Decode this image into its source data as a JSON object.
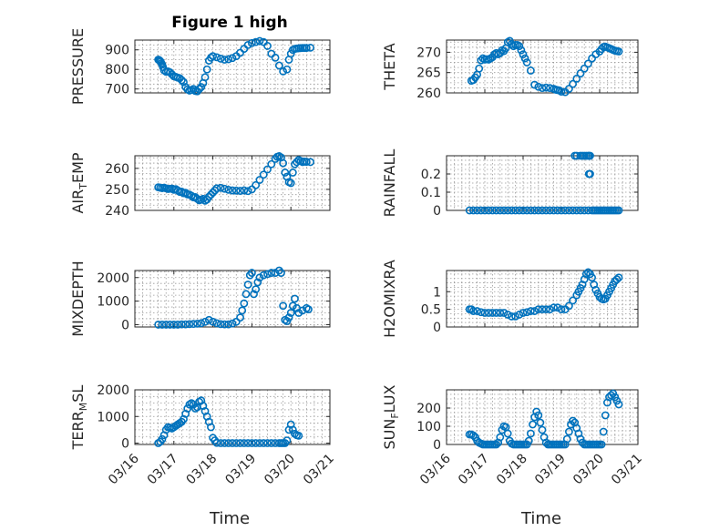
{
  "title": "Figure 1 high",
  "xlabel": "Time",
  "x_ticks": [
    "03/16",
    "03/17",
    "03/18",
    "03/19",
    "03/20",
    "03/21"
  ],
  "marker_color": "#0072BD",
  "chart_data": [
    {
      "type": "scatter",
      "ylabel": "PRESSURE",
      "xlim": [
        0,
        5
      ],
      "ylim": [
        680,
        950
      ],
      "yticks": [
        700,
        800,
        900
      ],
      "grid": true,
      "x": [
        0.6,
        0.62,
        0.64,
        0.66,
        0.68,
        0.7,
        0.72,
        0.75,
        0.8,
        0.85,
        0.9,
        0.95,
        1,
        1.05,
        1.1,
        1.15,
        1.2,
        1.25,
        1.3,
        1.35,
        1.4,
        1.45,
        1.5,
        1.55,
        1.6,
        1.65,
        1.7,
        1.75,
        1.8,
        1.85,
        1.9,
        1.95,
        2,
        2.1,
        2.2,
        2.3,
        2.4,
        2.5,
        2.6,
        2.7,
        2.8,
        2.9,
        3,
        3.1,
        3.2,
        3.3,
        3.4,
        3.5,
        3.6,
        3.7,
        3.8,
        3.9,
        3.95,
        4,
        4.05,
        4.1,
        4.15,
        4.2,
        4.25,
        4.3,
        4.35,
        4.4,
        4.5
      ],
      "y": [
        850,
        848,
        845,
        840,
        832,
        825,
        812,
        795,
        788,
        790,
        785,
        775,
        765,
        762,
        758,
        755,
        745,
        735,
        710,
        698,
        692,
        695,
        700,
        690,
        688,
        700,
        710,
        730,
        760,
        800,
        845,
        860,
        868,
        862,
        855,
        850,
        852,
        858,
        868,
        885,
        905,
        925,
        935,
        940,
        945,
        940,
        920,
        880,
        860,
        820,
        790,
        800,
        850,
        880,
        900,
        905,
        907,
        908,
        909,
        910,
        910,
        910,
        911
      ]
    },
    {
      "type": "scatter",
      "ylabel": "THETA",
      "xlim": [
        0,
        5
      ],
      "ylim": [
        260,
        273
      ],
      "yticks": [
        260,
        265,
        270
      ],
      "grid": true,
      "x": [
        0.65,
        0.7,
        0.75,
        0.8,
        0.85,
        0.9,
        0.95,
        1,
        1.05,
        1.1,
        1.15,
        1.2,
        1.25,
        1.3,
        1.35,
        1.4,
        1.45,
        1.5,
        1.55,
        1.6,
        1.65,
        1.7,
        1.75,
        1.8,
        1.85,
        1.9,
        1.95,
        2,
        2.05,
        2.1,
        2.2,
        2.3,
        2.4,
        2.5,
        2.6,
        2.7,
        2.8,
        2.85,
        2.9,
        2.95,
        3,
        3.1,
        3.2,
        3.3,
        3.4,
        3.5,
        3.6,
        3.7,
        3.8,
        3.9,
        4,
        4.05,
        4.1,
        4.15,
        4.2,
        4.25,
        4.3,
        4.35,
        4.4,
        4.45,
        4.5
      ],
      "y": [
        263,
        263.2,
        263.8,
        264.5,
        266,
        268,
        268.5,
        268.2,
        268.3,
        268.2,
        268.5,
        268.8,
        269.5,
        269.8,
        269.5,
        269.8,
        270.5,
        270.3,
        271,
        272.5,
        272.8,
        272,
        271.5,
        271.8,
        271.8,
        271.5,
        270.5,
        269.5,
        268.5,
        267.5,
        265.5,
        262,
        261.5,
        261.2,
        261.3,
        261.2,
        261,
        260.8,
        260.7,
        260.6,
        260.3,
        260.2,
        261,
        262.2,
        263.5,
        264.8,
        266,
        267.2,
        268.5,
        269.5,
        270.2,
        270.8,
        271.3,
        271.4,
        271.2,
        271,
        270.8,
        270.6,
        270.4,
        270.3,
        270.2
      ]
    },
    {
      "type": "scatter",
      "ylabel": "AIR_TEMP",
      "xlim": [
        0,
        5
      ],
      "ylim": [
        240,
        266
      ],
      "yticks": [
        240,
        250,
        260
      ],
      "grid": true,
      "x": [
        0.6,
        0.65,
        0.7,
        0.75,
        0.8,
        0.85,
        0.9,
        0.95,
        1,
        1.05,
        1.1,
        1.15,
        1.2,
        1.25,
        1.3,
        1.35,
        1.4,
        1.45,
        1.5,
        1.55,
        1.6,
        1.65,
        1.7,
        1.75,
        1.8,
        1.85,
        1.9,
        1.95,
        2,
        2.05,
        2.1,
        2.2,
        2.3,
        2.4,
        2.5,
        2.6,
        2.7,
        2.8,
        2.9,
        3,
        3.1,
        3.2,
        3.3,
        3.4,
        3.5,
        3.6,
        3.65,
        3.7,
        3.75,
        3.8,
        3.85,
        3.9,
        3.95,
        4,
        4.05,
        4.1,
        4.15,
        4.2,
        4.25,
        4.3,
        4.35,
        4.4,
        4.5
      ],
      "y": [
        251,
        250.8,
        250.6,
        250.8,
        250.5,
        250.2,
        250.3,
        250.4,
        249.8,
        250.1,
        249.5,
        248.8,
        248.9,
        248.2,
        248.4,
        247.6,
        247.5,
        247,
        246.2,
        246.3,
        245.5,
        244.8,
        245.1,
        245.5,
        244.6,
        245.2,
        246.5,
        247.5,
        248.5,
        249.5,
        250.5,
        250.7,
        250.3,
        249.8,
        249.5,
        249.4,
        249.3,
        249.5,
        249.2,
        250,
        252,
        254.5,
        257,
        259.5,
        262,
        264.5,
        265.5,
        265.8,
        265.2,
        262.5,
        258,
        256,
        253.5,
        253,
        258,
        262,
        263,
        264,
        263.5,
        263,
        263.2,
        263.1,
        263
      ]
    },
    {
      "type": "scatter",
      "ylabel": "RAINFALL",
      "xlim": [
        0,
        5
      ],
      "ylim": [
        0,
        0.3
      ],
      "yticks": [
        0,
        0.1,
        0.2
      ],
      "grid": true,
      "x": [
        0.6,
        0.7,
        0.8,
        0.9,
        1,
        1.1,
        1.2,
        1.3,
        1.4,
        1.5,
        1.6,
        1.7,
        1.8,
        1.9,
        2,
        2.1,
        2.2,
        2.3,
        2.4,
        2.5,
        2.6,
        2.7,
        2.8,
        2.9,
        3,
        3.1,
        3.2,
        3.3,
        3.4,
        3.5,
        3.6,
        3.7,
        3.8,
        3.85,
        3.9,
        3.95,
        4,
        4.05,
        4.1,
        4.15,
        4.2,
        4.25,
        4.3,
        4.35,
        4.4,
        4.45,
        4.5,
        3.35,
        3.4,
        3.5,
        3.55,
        3.6,
        3.65,
        3.7,
        3.72,
        3.75,
        3.72,
        3.75
      ],
      "y": [
        0,
        0,
        0,
        0,
        0,
        0,
        0,
        0,
        0,
        0,
        0,
        0,
        0,
        0,
        0,
        0,
        0,
        0,
        0,
        0,
        0,
        0,
        0,
        0,
        0,
        0,
        0,
        0,
        0,
        0,
        0,
        0,
        0,
        0,
        0,
        0,
        0,
        0,
        0,
        0,
        0,
        0,
        0,
        0,
        0,
        0,
        0,
        0.3,
        0.3,
        0.3,
        0.3,
        0.3,
        0.3,
        0.3,
        0.3,
        0.3,
        0.2,
        0.2
      ]
    },
    {
      "type": "scatter",
      "ylabel": "MIXDEPTH",
      "xlim": [
        0,
        5
      ],
      "ylim": [
        -100,
        2300
      ],
      "yticks": [
        0,
        1000,
        2000
      ],
      "grid": true,
      "x": [
        0.6,
        0.7,
        0.8,
        0.9,
        1,
        1.1,
        1.2,
        1.3,
        1.4,
        1.5,
        1.6,
        1.7,
        1.8,
        1.9,
        2,
        2.1,
        2.2,
        2.3,
        2.4,
        2.5,
        2.6,
        2.7,
        2.75,
        2.8,
        2.85,
        2.9,
        2.95,
        3,
        3.05,
        3.1,
        3.15,
        3.2,
        3.3,
        3.4,
        3.5,
        3.6,
        3.7,
        3.75,
        3.8,
        3.85,
        3.9,
        3.95,
        4,
        4.05,
        4.1,
        4.15,
        4.2,
        4.3,
        4.4,
        4.45
      ],
      "y": [
        0,
        0,
        0,
        0,
        0,
        0,
        10,
        10,
        20,
        30,
        40,
        60,
        120,
        200,
        120,
        60,
        20,
        10,
        10,
        50,
        120,
        300,
        600,
        900,
        1300,
        1700,
        2100,
        2200,
        1300,
        1500,
        1800,
        2000,
        2100,
        2150,
        2200,
        2200,
        2300,
        2200,
        800,
        200,
        150,
        300,
        500,
        800,
        1100,
        700,
        500,
        600,
        700,
        650
      ]
    },
    {
      "type": "scatter",
      "ylabel": "H2OMIXRA",
      "xlim": [
        0,
        5
      ],
      "ylim": [
        0,
        1.6
      ],
      "yticks": [
        0,
        0.5,
        1
      ],
      "grid": true,
      "x": [
        0.6,
        0.65,
        0.7,
        0.8,
        0.9,
        1,
        1.1,
        1.2,
        1.3,
        1.4,
        1.5,
        1.6,
        1.7,
        1.8,
        1.9,
        2,
        2.1,
        2.2,
        2.3,
        2.4,
        2.5,
        2.6,
        2.7,
        2.8,
        2.9,
        3,
        3.1,
        3.2,
        3.3,
        3.4,
        3.45,
        3.5,
        3.55,
        3.6,
        3.65,
        3.7,
        3.75,
        3.8,
        3.85,
        3.9,
        3.95,
        4,
        4.05,
        4.1,
        4.15,
        4.2,
        4.25,
        4.3,
        4.35,
        4.4,
        4.45,
        4.5
      ],
      "y": [
        0.5,
        0.5,
        0.45,
        0.45,
        0.42,
        0.4,
        0.4,
        0.4,
        0.4,
        0.4,
        0.4,
        0.35,
        0.3,
        0.3,
        0.35,
        0.4,
        0.42,
        0.45,
        0.45,
        0.5,
        0.5,
        0.5,
        0.5,
        0.55,
        0.55,
        0.5,
        0.5,
        0.6,
        0.75,
        0.9,
        1,
        1.1,
        1.2,
        1.35,
        1.5,
        1.55,
        1.5,
        1.4,
        1.2,
        1.05,
        0.95,
        0.85,
        0.8,
        0.78,
        0.8,
        0.9,
        1,
        1.1,
        1.2,
        1.3,
        1.35,
        1.4
      ]
    },
    {
      "type": "scatter",
      "ylabel": "TERR_MSL",
      "xlim": [
        0,
        5
      ],
      "ylim": [
        -50,
        2000
      ],
      "yticks": [
        0,
        1000,
        2000
      ],
      "grid": true,
      "x": [
        0.6,
        0.65,
        0.7,
        0.75,
        0.8,
        0.85,
        0.9,
        0.95,
        1,
        1.05,
        1.1,
        1.15,
        1.2,
        1.25,
        1.3,
        1.35,
        1.4,
        1.45,
        1.5,
        1.55,
        1.6,
        1.65,
        1.7,
        1.75,
        1.8,
        1.85,
        1.9,
        1.95,
        2,
        2.05,
        2.1,
        2.2,
        2.3,
        2.4,
        2.5,
        2.6,
        2.7,
        2.8,
        2.9,
        3,
        3.1,
        3.2,
        3.3,
        3.4,
        3.5,
        3.6,
        3.7,
        3.75,
        3.8,
        3.85,
        3.9,
        3.95,
        4,
        4.05,
        4.1,
        4.15,
        4.2
      ],
      "y": [
        0,
        50,
        150,
        300,
        500,
        600,
        580,
        550,
        600,
        650,
        700,
        750,
        800,
        900,
        1100,
        1300,
        1450,
        1500,
        1450,
        1300,
        1350,
        1550,
        1600,
        1400,
        1200,
        1000,
        800,
        600,
        200,
        100,
        10,
        0,
        0,
        0,
        0,
        0,
        0,
        0,
        0,
        0,
        0,
        0,
        0,
        0,
        0,
        0,
        0,
        0,
        0,
        0,
        100,
        500,
        700,
        500,
        350,
        300,
        280
      ]
    },
    {
      "type": "scatter",
      "ylabel": "SUN_FLUX",
      "xlim": [
        0,
        5
      ],
      "ylim": [
        0,
        300
      ],
      "yticks": [
        0,
        100,
        200
      ],
      "grid": true,
      "x": [
        0.6,
        0.65,
        0.7,
        0.75,
        0.8,
        0.85,
        0.9,
        0.95,
        1,
        1.05,
        1.1,
        1.15,
        1.2,
        1.25,
        1.3,
        1.35,
        1.4,
        1.45,
        1.5,
        1.55,
        1.6,
        1.65,
        1.7,
        1.75,
        1.8,
        1.85,
        1.9,
        1.95,
        2,
        2.05,
        2.1,
        2.15,
        2.2,
        2.25,
        2.3,
        2.35,
        2.4,
        2.45,
        2.5,
        2.55,
        2.6,
        2.65,
        2.7,
        2.75,
        2.8,
        2.85,
        2.9,
        2.95,
        3,
        3.05,
        3.1,
        3.15,
        3.2,
        3.25,
        3.3,
        3.35,
        3.4,
        3.45,
        3.5,
        3.55,
        3.6,
        3.65,
        3.7,
        3.75,
        3.8,
        3.85,
        3.9,
        3.95,
        4,
        4.05,
        4.1,
        4.15,
        4.2,
        4.25,
        4.3,
        4.35,
        4.4,
        4.45,
        4.5
      ],
      "y": [
        55,
        55,
        50,
        40,
        20,
        10,
        5,
        0,
        0,
        0,
        0,
        0,
        0,
        0,
        0,
        10,
        40,
        80,
        100,
        95,
        60,
        20,
        5,
        0,
        0,
        0,
        0,
        0,
        0,
        0,
        0,
        20,
        60,
        110,
        150,
        180,
        160,
        120,
        80,
        40,
        10,
        0,
        0,
        0,
        0,
        0,
        0,
        0,
        0,
        0,
        0,
        30,
        70,
        110,
        130,
        120,
        90,
        60,
        30,
        10,
        0,
        0,
        0,
        0,
        0,
        0,
        0,
        0,
        0,
        0,
        70,
        160,
        230,
        260,
        270,
        280,
        260,
        240,
        220
      ]
    }
  ]
}
